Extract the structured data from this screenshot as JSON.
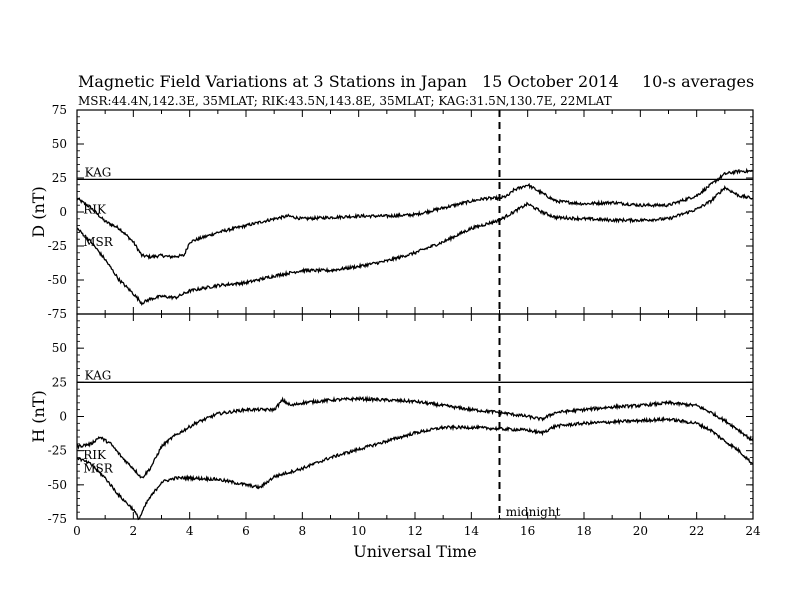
{
  "header": {
    "title": "Magnetic Field Variations at 3 Stations in Japan",
    "date": "15 October 2014",
    "averaging": "10-s averages",
    "stations": "MSR:44.4N,142.3E, 35MLAT;  RIK:43.5N,143.8E, 35MLAT;  KAG:31.5N,130.7E, 22MLAT"
  },
  "chart_data": [
    {
      "type": "line",
      "panel": "top",
      "ylabel": "D (nT)",
      "xlim": [
        0,
        24
      ],
      "ylim": [
        -75,
        75
      ],
      "yticks": [
        -75,
        -50,
        -25,
        0,
        25,
        50,
        75
      ],
      "xticks": [
        0,
        2,
        4,
        6,
        8,
        10,
        12,
        14,
        16,
        18,
        20,
        22,
        24
      ],
      "grid": false,
      "series": [
        {
          "name": "KAG",
          "x": [
            0,
            24
          ],
          "y": [
            24,
            24
          ]
        },
        {
          "name": "RIK",
          "x": [
            0,
            0.5,
            1,
            1.5,
            2,
            2.3,
            2.6,
            3,
            3.3,
            3.8,
            4,
            5,
            6,
            7,
            7.5,
            8,
            9,
            10,
            11,
            12,
            13,
            14,
            14.5,
            15,
            15.3,
            15.5,
            16,
            16.5,
            17,
            18,
            19,
            20,
            21,
            22,
            22.5,
            23,
            23.5,
            24
          ],
          "y": [
            10,
            3,
            -7,
            -12,
            -22,
            -32,
            -33,
            -32,
            -33,
            -32,
            -22,
            -15,
            -10,
            -5,
            -3,
            -5,
            -4,
            -3,
            -3,
            -2,
            3,
            8,
            10,
            10,
            12,
            16,
            20,
            14,
            8,
            6,
            7,
            5,
            5,
            12,
            20,
            28,
            30,
            30
          ]
        },
        {
          "name": "MSR",
          "x": [
            0,
            0.5,
            1,
            1.5,
            2,
            2.3,
            2.6,
            3,
            3.5,
            4,
            5,
            6,
            7,
            8,
            9,
            10,
            11,
            12,
            13,
            14,
            15,
            15.5,
            16,
            16.5,
            17,
            18,
            19,
            20,
            21,
            22,
            22.5,
            23,
            23.5,
            24
          ],
          "y": [
            -12,
            -22,
            -35,
            -50,
            -60,
            -67,
            -64,
            -62,
            -63,
            -58,
            -54,
            -52,
            -47,
            -43,
            -43,
            -40,
            -36,
            -30,
            -22,
            -12,
            -6,
            0,
            6,
            0,
            -4,
            -5,
            -6,
            -6,
            -5,
            2,
            8,
            18,
            12,
            10
          ]
        }
      ],
      "annotations": [
        {
          "text": "KAG",
          "x": 0.2,
          "y": 29
        },
        {
          "text": "RIK",
          "x": 0.15,
          "y": 2
        },
        {
          "text": "MSR",
          "x": 0.15,
          "y": -22
        }
      ]
    },
    {
      "type": "line",
      "panel": "bottom",
      "ylabel": "H (nT)",
      "xlabel": "Universal Time",
      "xlim": [
        0,
        24
      ],
      "ylim": [
        -75,
        75
      ],
      "yticks": [
        -75,
        -50,
        -25,
        0,
        25,
        50,
        75
      ],
      "xticks": [
        0,
        2,
        4,
        6,
        8,
        10,
        12,
        14,
        16,
        18,
        20,
        22,
        24
      ],
      "grid": false,
      "series": [
        {
          "name": "KAG",
          "x": [
            0,
            24
          ],
          "y": [
            25,
            25
          ]
        },
        {
          "name": "RIK",
          "x": [
            0,
            0.5,
            0.8,
            1.2,
            1.6,
            2,
            2.3,
            2.6,
            3,
            3.4,
            3.8,
            4.2,
            5,
            6,
            7,
            7.3,
            7.6,
            8,
            9,
            10,
            11,
            12,
            13,
            14,
            15,
            16,
            16.5,
            17,
            18,
            19,
            20,
            21,
            22,
            22.5,
            23,
            23.5,
            24
          ],
          "y": [
            -22,
            -20,
            -15,
            -20,
            -30,
            -38,
            -45,
            -38,
            -22,
            -15,
            -10,
            -5,
            2,
            5,
            5,
            12,
            8,
            10,
            12,
            13,
            12,
            11,
            8,
            5,
            3,
            0,
            -2,
            3,
            5,
            7,
            8,
            10,
            8,
            3,
            -3,
            -10,
            -18
          ]
        },
        {
          "name": "MSR",
          "x": [
            0,
            0.5,
            1,
            1.5,
            2,
            2.2,
            2.5,
            3,
            3.5,
            4,
            5,
            6,
            6.5,
            7,
            8,
            9,
            10,
            11,
            12,
            13,
            14,
            15,
            16,
            16.5,
            17,
            18,
            19,
            20,
            21,
            22,
            22.5,
            23,
            23.5,
            24
          ],
          "y": [
            -30,
            -35,
            -45,
            -58,
            -68,
            -75,
            -62,
            -48,
            -45,
            -45,
            -46,
            -50,
            -52,
            -44,
            -38,
            -30,
            -24,
            -18,
            -12,
            -8,
            -8,
            -9,
            -10,
            -12,
            -7,
            -5,
            -4,
            -3,
            -2,
            -5,
            -10,
            -18,
            -25,
            -35
          ]
        }
      ],
      "annotations": [
        {
          "text": "KAG",
          "x": 0.2,
          "y": 30
        },
        {
          "text": "RIK",
          "x": 0.15,
          "y": -28
        },
        {
          "text": "MSR",
          "x": 0.15,
          "y": -38
        },
        {
          "text": "midnight",
          "x": 15.15,
          "y": -70
        }
      ]
    }
  ],
  "midnight_ut": 15
}
